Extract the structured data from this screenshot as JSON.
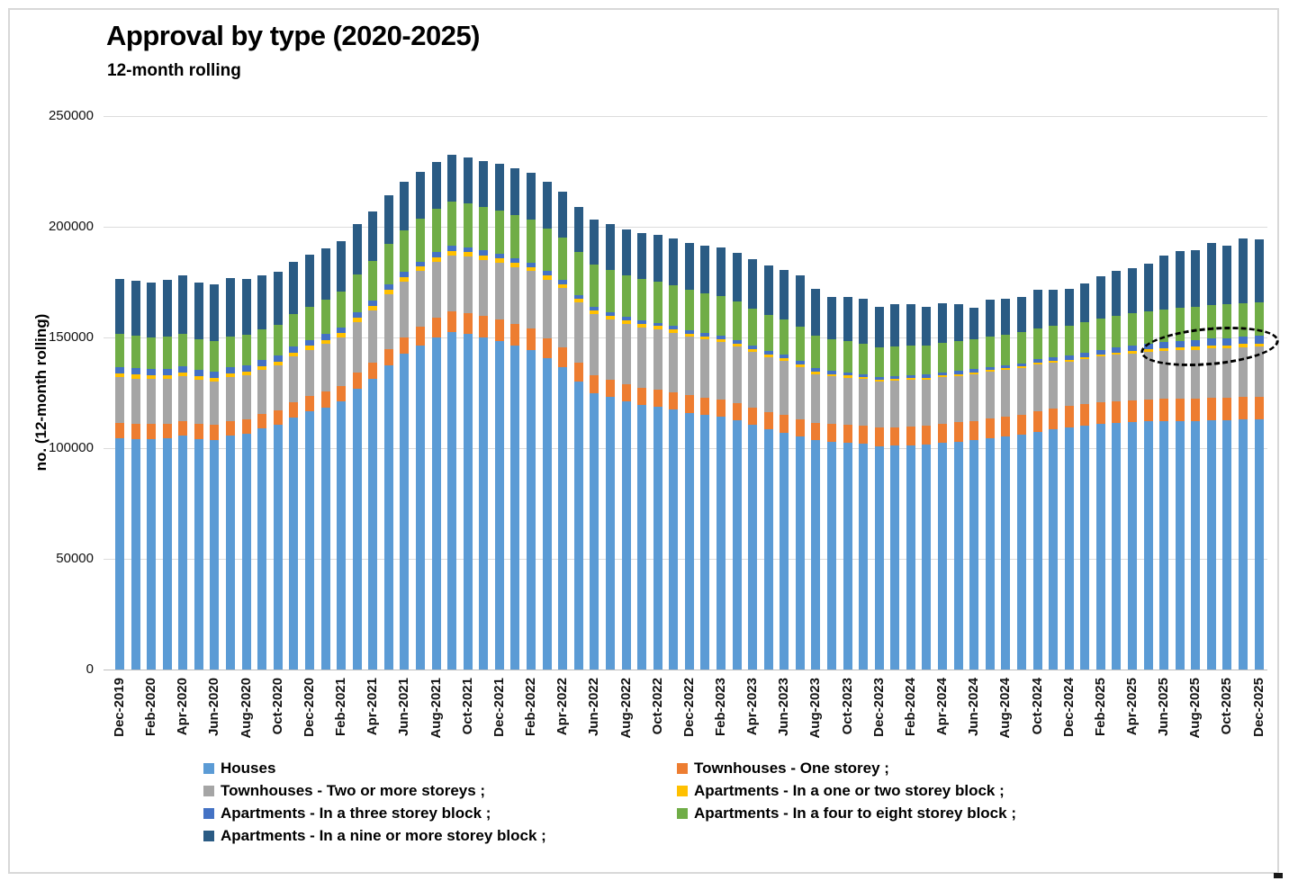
{
  "header": {
    "title": "Approval by type (2020-2025)",
    "subtitle": "12-month rolling"
  },
  "y_axis": {
    "title": "no. (12-month rolling)",
    "ticks": [
      "0",
      "50000",
      "100000",
      "150000",
      "200000",
      "250000"
    ]
  },
  "x_axis": {
    "tick_step": 2
  },
  "legend": {
    "items": [
      {
        "key": "houses",
        "label": "Houses",
        "color": "#5B9BD5"
      },
      {
        "key": "townhouses-one-storey",
        "label": "Townhouses - One storey ;",
        "color": "#ED7D31"
      },
      {
        "key": "townhouses-two-or-more",
        "label": "Townhouses - Two or more storeys ;",
        "color": "#A5A5A5"
      },
      {
        "key": "apartments-one-two-storey",
        "label": "Apartments - In a one or two storey block ;",
        "color": "#FFC000"
      },
      {
        "key": "apartments-three-storey",
        "label": "Apartments - In a three storey block ;",
        "color": "#4472C4"
      },
      {
        "key": "apartments-four-eight-storey",
        "label": "Apartments - In a four to eight storey block ;",
        "color": "#70AD47"
      },
      {
        "key": "apartments-nine-or-more",
        "label": "Apartments - In a nine or more storey block ;",
        "color": "#2A5B84"
      }
    ]
  },
  "annotation": {
    "shape": "dashed-ellipse"
  },
  "chart_data": {
    "type": "bar",
    "stacked": true,
    "title": "Approval by type (2020-2025)",
    "subtitle": "12-month rolling",
    "ylabel": "no. (12-month rolling)",
    "ylim": [
      0,
      250000
    ],
    "grid": true,
    "legend_position": "bottom",
    "x_tick_step": 2,
    "categories": [
      "Dec-2019",
      "Jan-2020",
      "Feb-2020",
      "Mar-2020",
      "Apr-2020",
      "May-2020",
      "Jun-2020",
      "Jul-2020",
      "Aug-2020",
      "Sep-2020",
      "Oct-2020",
      "Nov-2020",
      "Dec-2020",
      "Jan-2021",
      "Feb-2021",
      "Mar-2021",
      "Apr-2021",
      "May-2021",
      "Jun-2021",
      "Jul-2021",
      "Aug-2021",
      "Sep-2021",
      "Oct-2021",
      "Nov-2021",
      "Dec-2021",
      "Jan-2022",
      "Feb-2022",
      "Mar-2022",
      "Apr-2022",
      "May-2022",
      "Jun-2022",
      "Jul-2022",
      "Aug-2022",
      "Sep-2022",
      "Oct-2022",
      "Nov-2022",
      "Dec-2022",
      "Jan-2023",
      "Feb-2023",
      "Mar-2023",
      "Apr-2023",
      "May-2023",
      "Jun-2023",
      "Jul-2023",
      "Aug-2023",
      "Sep-2023",
      "Oct-2023",
      "Nov-2023",
      "Dec-2023",
      "Jan-2024",
      "Feb-2024",
      "Mar-2024",
      "Apr-2024",
      "May-2024",
      "Jun-2024",
      "Jul-2024",
      "Aug-2024",
      "Sep-2024",
      "Oct-2024",
      "Nov-2024",
      "Dec-2024",
      "Jan-2025",
      "Feb-2025",
      "Mar-2025",
      "Apr-2025",
      "May-2025",
      "Jun-2025",
      "Jul-2025",
      "Aug-2025",
      "Sep-2025",
      "Oct-2025",
      "Nov-2025",
      "Dec-2025"
    ],
    "series": [
      {
        "key": "houses",
        "name": "Houses",
        "color": "#5B9BD5",
        "values": [
          104500,
          104200,
          104000,
          104300,
          105500,
          104200,
          103800,
          105800,
          106500,
          108900,
          110500,
          114000,
          116500,
          118500,
          121000,
          127000,
          131500,
          137600,
          142500,
          146500,
          150000,
          152500,
          151500,
          150000,
          148500,
          146500,
          144500,
          140500,
          136500,
          130000,
          125000,
          123000,
          121000,
          119500,
          118800,
          117500,
          116000,
          115000,
          114200,
          112500,
          110500,
          108500,
          107000,
          105300,
          103500,
          103000,
          102500,
          102000,
          101000,
          101200,
          101400,
          101600,
          102400,
          103000,
          103600,
          104500,
          105300,
          106000,
          107500,
          108500,
          109500,
          110200,
          110800,
          111200,
          111600,
          112000,
          112200,
          112400,
          112300,
          112600,
          112700,
          112900,
          113000
        ]
      },
      {
        "key": "townhouses-one-storey",
        "name": "Townhouses - One storey ;",
        "color": "#ED7D31",
        "values": [
          7000,
          6900,
          6900,
          6800,
          6800,
          6700,
          6600,
          6600,
          6600,
          6600,
          6700,
          6800,
          6900,
          7000,
          7000,
          7100,
          7100,
          7200,
          7600,
          8200,
          8800,
          9300,
          9500,
          9600,
          9600,
          9500,
          9400,
          9200,
          8900,
          8500,
          8000,
          7900,
          7800,
          7800,
          7800,
          7800,
          7800,
          7800,
          7800,
          7800,
          7800,
          7800,
          7900,
          7900,
          8000,
          8000,
          8100,
          8100,
          8200,
          8300,
          8400,
          8500,
          8600,
          8700,
          8800,
          8900,
          9000,
          9100,
          9300,
          9400,
          9600,
          9700,
          9800,
          9900,
          10000,
          10000,
          10100,
          10100,
          10200,
          10200,
          10200,
          10300,
          10300
        ]
      },
      {
        "key": "townhouses-two-or-more",
        "name": "Townhouses - Two or more storeys ;",
        "color": "#A5A5A5",
        "values": [
          20500,
          20400,
          20300,
          20200,
          20200,
          20000,
          19800,
          19800,
          19800,
          19900,
          20100,
          20500,
          21000,
          21500,
          22000,
          22800,
          23600,
          24700,
          25000,
          25200,
          25300,
          25300,
          25400,
          25500,
          25600,
          25800,
          26000,
          26400,
          26800,
          27200,
          27400,
          27400,
          27300,
          27200,
          27000,
          26800,
          26500,
          26200,
          26000,
          25600,
          25200,
          24800,
          24400,
          23500,
          22000,
          21500,
          21300,
          21200,
          21000,
          21000,
          21000,
          21000,
          21000,
          21000,
          21000,
          21000,
          21000,
          21000,
          21000,
          20800,
          20000,
          20300,
          20700,
          21000,
          21200,
          21400,
          21600,
          21800,
          22000,
          22200,
          22300,
          22500,
          22600
        ]
      },
      {
        "key": "apartments-one-two-storey",
        "name": "Apartments - In a one or two storey block ;",
        "color": "#FFC000",
        "values": [
          1800,
          1800,
          1700,
          1700,
          1700,
          1700,
          1600,
          1600,
          1600,
          1600,
          1700,
          1700,
          1800,
          1800,
          1900,
          1900,
          2000,
          2000,
          2000,
          2100,
          2100,
          2100,
          2100,
          2100,
          2000,
          2000,
          1900,
          1900,
          1800,
          1800,
          1700,
          1600,
          1600,
          1500,
          1500,
          1500,
          1400,
          1400,
          1400,
          1400,
          1300,
          1300,
          1300,
          1200,
          1100,
          1000,
          1000,
          900,
          800,
          800,
          800,
          800,
          800,
          800,
          800,
          800,
          800,
          800,
          800,
          900,
          900,
          1000,
          1000,
          1100,
          1100,
          1200,
          1200,
          1200,
          1300,
          1300,
          1300,
          1400,
          1400
        ]
      },
      {
        "key": "apartments-three-storey",
        "name": "Apartments - In a three storey block ;",
        "color": "#4472C4",
        "values": [
          3000,
          3000,
          2900,
          2900,
          2900,
          2800,
          2800,
          2800,
          2900,
          2900,
          2900,
          2900,
          2800,
          2800,
          2700,
          2600,
          2500,
          2400,
          2400,
          2300,
          2300,
          2300,
          2200,
          2200,
          2100,
          2100,
          2000,
          2000,
          1900,
          1800,
          1700,
          1700,
          1600,
          1600,
          1600,
          1600,
          1600,
          1600,
          1500,
          1500,
          1500,
          1500,
          1500,
          1400,
          1400,
          1400,
          1400,
          1300,
          1300,
          1300,
          1300,
          1300,
          1300,
          1300,
          1400,
          1400,
          1400,
          1500,
          1500,
          1600,
          1700,
          1900,
          2100,
          2300,
          2500,
          2700,
          2800,
          3000,
          3100,
          3200,
          3300,
          3300,
          3400
        ]
      },
      {
        "key": "apartments-four-eight-storey",
        "name": "Apartments - In a four to eight storey block ;",
        "color": "#70AD47",
        "values": [
          14800,
          14600,
          14400,
          14400,
          14600,
          14000,
          13800,
          13900,
          13800,
          13800,
          14000,
          14500,
          15000,
          15500,
          16000,
          17000,
          17800,
          18400,
          19000,
          19400,
          19700,
          19900,
          19800,
          19600,
          19500,
          19500,
          19500,
          19400,
          19300,
          19200,
          19100,
          19000,
          18900,
          18800,
          18700,
          18500,
          18300,
          18000,
          17800,
          17400,
          16800,
          16300,
          16000,
          15500,
          14800,
          14200,
          13900,
          13700,
          13200,
          13300,
          13300,
          13300,
          13400,
          13500,
          13600,
          13700,
          13800,
          13900,
          14000,
          14100,
          13500,
          13800,
          14000,
          14200,
          14400,
          14600,
          14800,
          14900,
          15000,
          15100,
          15100,
          15200,
          15300
        ]
      },
      {
        "key": "apartments-nine-or-more",
        "name": "Apartments - In a nine or more storey block ;",
        "color": "#2A5B84",
        "values": [
          25000,
          24600,
          24800,
          25600,
          26200,
          25500,
          25700,
          26500,
          25400,
          24500,
          24000,
          23800,
          23500,
          23200,
          23000,
          23000,
          22600,
          21900,
          21700,
          21300,
          21000,
          21200,
          21000,
          20900,
          21000,
          21000,
          21000,
          20800,
          20600,
          20500,
          20400,
          20600,
          20800,
          20900,
          21000,
          21100,
          21200,
          21500,
          21800,
          22000,
          22200,
          22400,
          22500,
          23200,
          21000,
          19300,
          20200,
          20500,
          18500,
          19000,
          18700,
          17400,
          18100,
          16600,
          14400,
          17000,
          16400,
          16100,
          17300,
          16400,
          16800,
          17600,
          19100,
          20600,
          20700,
          21500,
          24500,
          25500,
          25400,
          28100,
          26700,
          29000,
          28500
        ]
      }
    ]
  }
}
